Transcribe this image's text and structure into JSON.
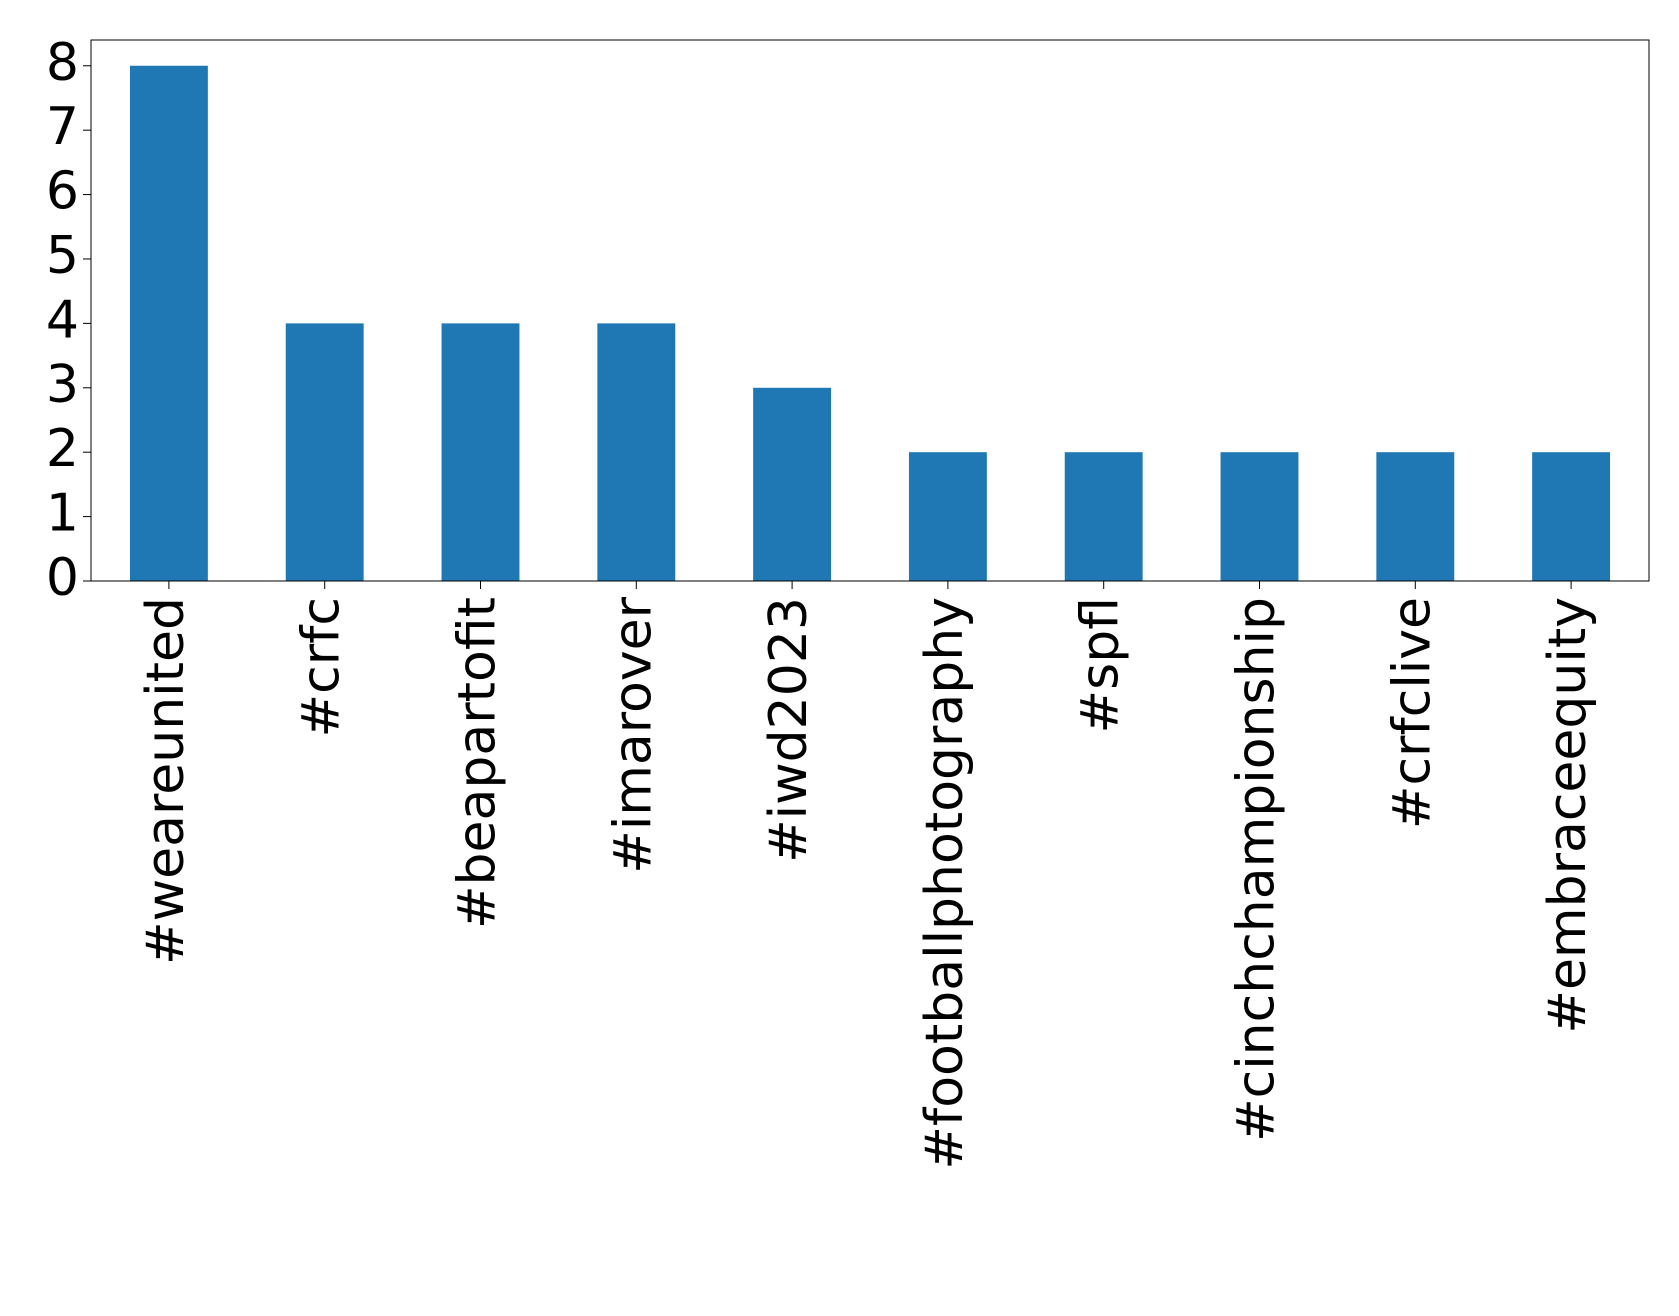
{
  "chart_data": {
    "type": "bar",
    "categories": [
      "#weareunited",
      "#crfc",
      "#beapartofit",
      "#imarover",
      "#iwd2023",
      "#footballphotography",
      "#spfl",
      "#cinchchampionship",
      "#crfclive",
      "#embraceequity"
    ],
    "values": [
      8,
      4,
      4,
      4,
      3,
      2,
      2,
      2,
      2,
      2
    ],
    "color": "#1f77b4",
    "ylim": [
      0,
      8.4
    ],
    "yticks": [
      0,
      1,
      2,
      3,
      4,
      5,
      6,
      7,
      8
    ],
    "grid": false
  }
}
